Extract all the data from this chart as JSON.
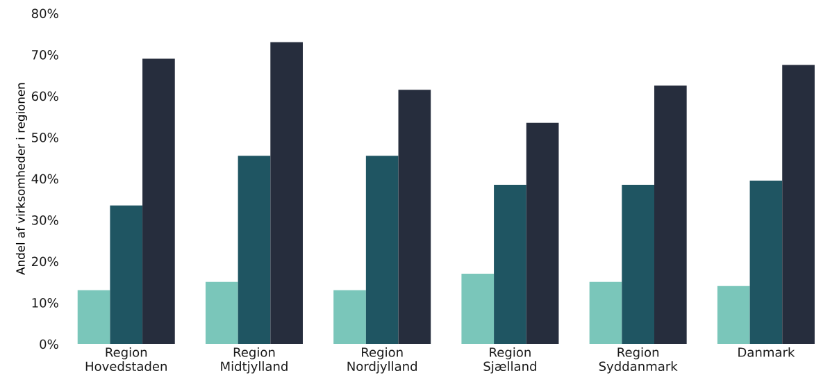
{
  "chart_data": {
    "type": "bar",
    "ylabel": "Andel af virksomheder i regionen",
    "categories": [
      "Region\nHovedstaden",
      "Region\nMidtjylland",
      "Region\nNordjylland",
      "Region\nSjælland",
      "Region\nSyddanmark",
      "Danmark"
    ],
    "series": [
      {
        "color": "#7ac6ba",
        "values": [
          13,
          15,
          13,
          17,
          15,
          14
        ]
      },
      {
        "color": "#1f5562",
        "values": [
          33.5,
          45.5,
          45.5,
          38.5,
          38.5,
          39.5
        ]
      },
      {
        "color": "#262d3d",
        "values": [
          69,
          73,
          61.5,
          53.5,
          62.5,
          67.5
        ]
      }
    ],
    "ylim": [
      0,
      80
    ],
    "yticks": [
      {
        "value": 0,
        "label": "0%"
      },
      {
        "value": 10,
        "label": "10%"
      },
      {
        "value": 20,
        "label": "20%"
      },
      {
        "value": 30,
        "label": "30%"
      },
      {
        "value": 40,
        "label": "40%"
      },
      {
        "value": 50,
        "label": "50%"
      },
      {
        "value": 60,
        "label": "60%"
      },
      {
        "value": 70,
        "label": "70%"
      },
      {
        "value": 80,
        "label": "80%"
      }
    ],
    "grid": false
  }
}
